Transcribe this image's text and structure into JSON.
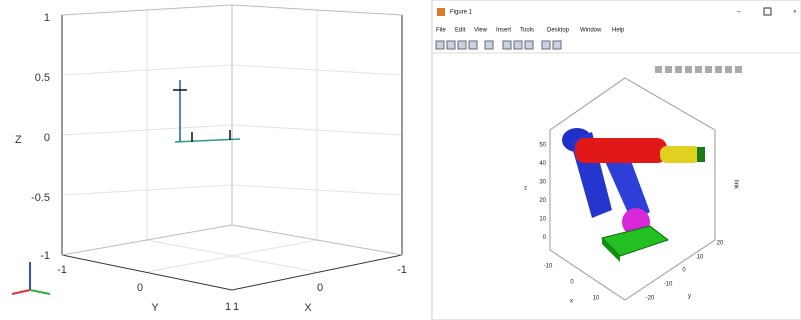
{
  "left_plot": {
    "z_label": "Z",
    "z_ticks": [
      "1",
      "0.5",
      "0",
      "-0.5",
      "-1"
    ],
    "y_label": "Y",
    "y_ticks": [
      "-1",
      "0",
      "1"
    ],
    "x_label": "X",
    "x_ticks": [
      "1",
      "0",
      "-1"
    ]
  },
  "right_window": {
    "title": "Figure 1",
    "menu": [
      "File",
      "Edit",
      "View",
      "Insert",
      "Tools",
      "Desktop",
      "Window",
      "Help"
    ],
    "z_label": "z",
    "z_ticks": [
      "50",
      "40",
      "30",
      "20",
      "10",
      "0"
    ],
    "x_label": "x",
    "x_ticks": [
      "-10",
      "0",
      "10"
    ],
    "y_label": "y",
    "y_ticks": [
      "20",
      "10",
      "0",
      "-10",
      "-20"
    ],
    "side_label": "link"
  }
}
